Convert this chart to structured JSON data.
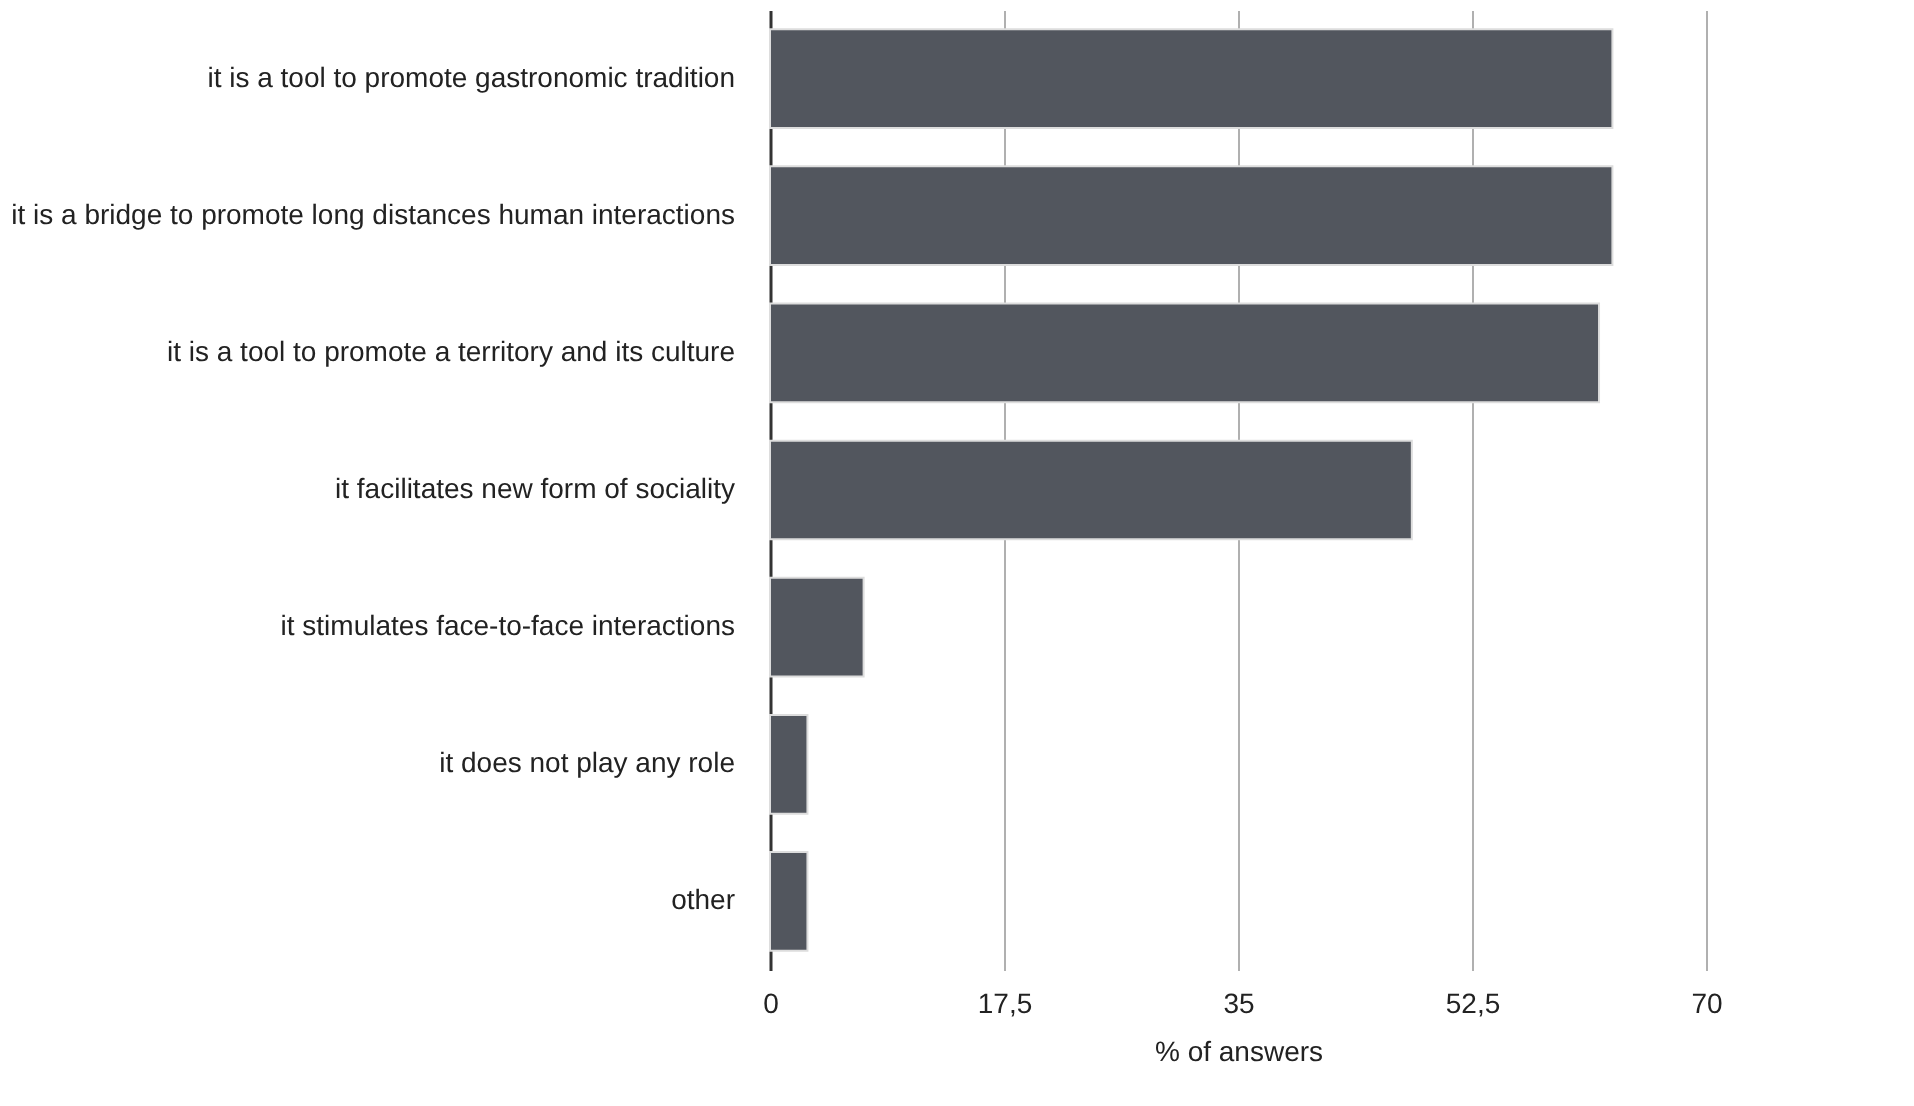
{
  "chart_data": {
    "type": "bar",
    "orientation": "horizontal",
    "xlabel": "% of answers",
    "categories": [
      "it is a tool to promote gastronomic tradition",
      "it is a bridge to promote long distances human interactions",
      "it is a tool to promote a territory and its culture",
      "it facilitates new form of sociality",
      "it stimulates face-to-face interactions",
      "it does not play any role",
      "other"
    ],
    "values": [
      63,
      63,
      62,
      48,
      7,
      2.8,
      2.8
    ],
    "color": "#52565e",
    "xlim": [
      0,
      70
    ],
    "xticks": [
      0,
      {
        "value": 17.5,
        "label": "17,5"
      },
      35,
      {
        "value": 52.5,
        "label": "52,5"
      },
      70
    ],
    "grid": "x"
  }
}
